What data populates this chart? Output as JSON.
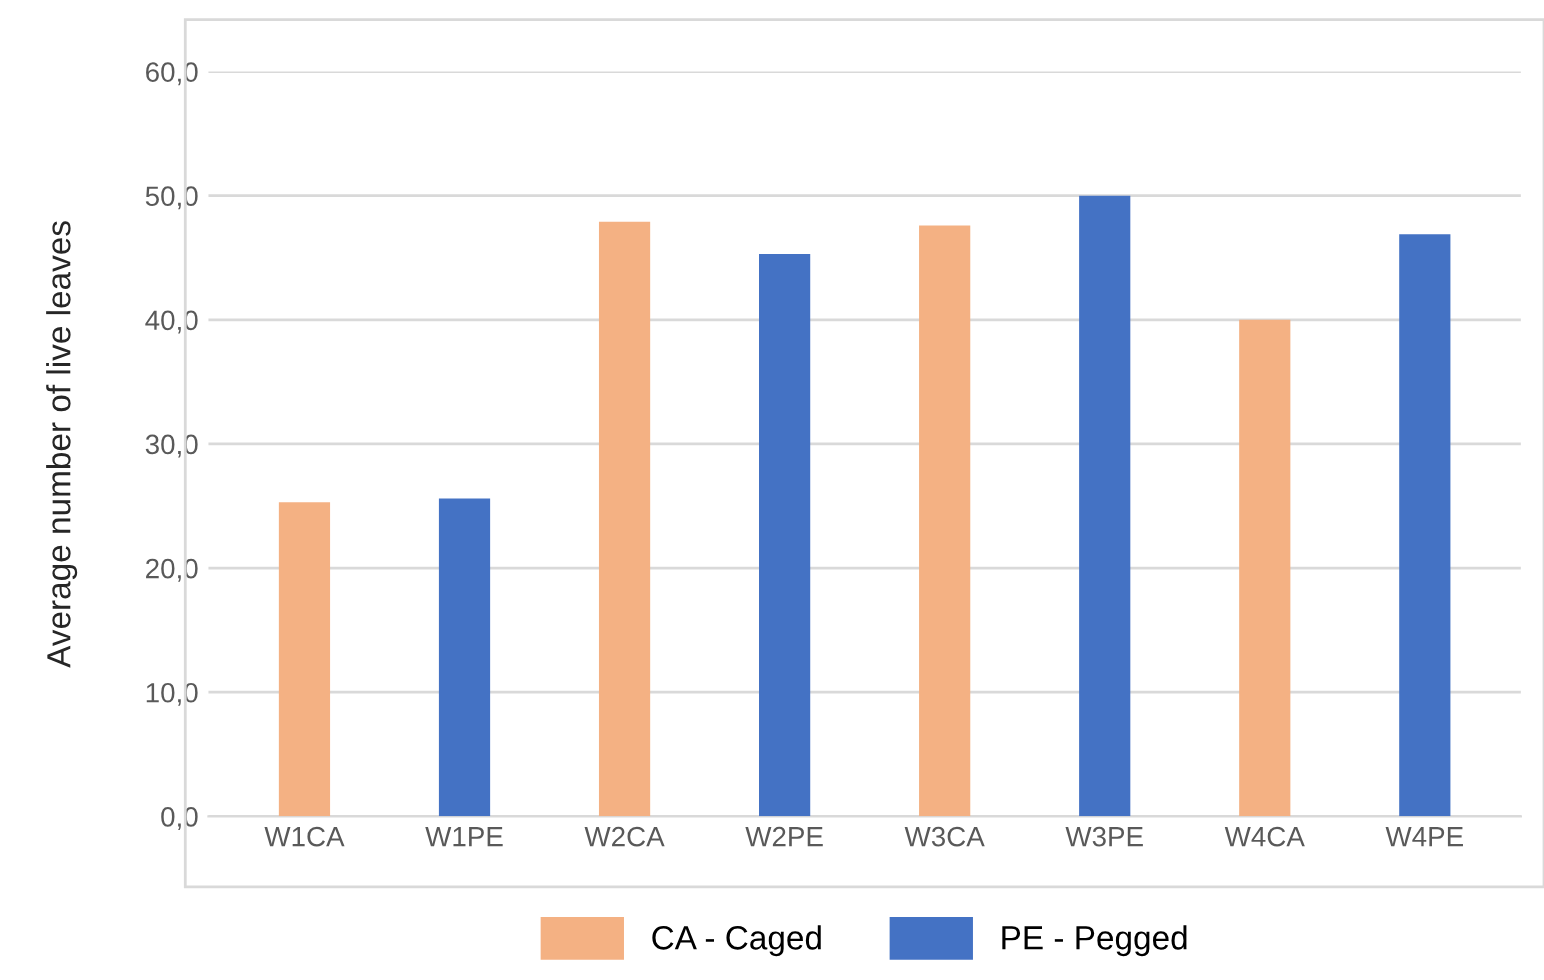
{
  "chart_data": {
    "type": "bar",
    "ylabel": "Average number of live leaves",
    "categories": [
      "W1CA",
      "W1PE",
      "W2CA",
      "W2PE",
      "W3CA",
      "W3PE",
      "W4CA",
      "W4PE"
    ],
    "series": [
      {
        "name": "CA - Caged",
        "color": "#f4b183",
        "values": [
          25.3,
          null,
          47.9,
          null,
          47.6,
          null,
          40.0,
          null
        ]
      },
      {
        "name": "PE - Pegged",
        "color": "#4472c4",
        "values": [
          null,
          25.6,
          null,
          45.3,
          null,
          50.0,
          null,
          46.9
        ]
      }
    ],
    "ylim": [
      0,
      60
    ],
    "yticks": [
      {
        "value": 0,
        "label": "0,0"
      },
      {
        "value": 10,
        "label": "10,0"
      },
      {
        "value": 20,
        "label": "20,0"
      },
      {
        "value": 30,
        "label": "30,0"
      },
      {
        "value": 40,
        "label": "40,0"
      },
      {
        "value": 50,
        "label": "50,0"
      },
      {
        "value": 60,
        "label": "60,0"
      }
    ],
    "grid": "y",
    "legend": "bottom"
  }
}
